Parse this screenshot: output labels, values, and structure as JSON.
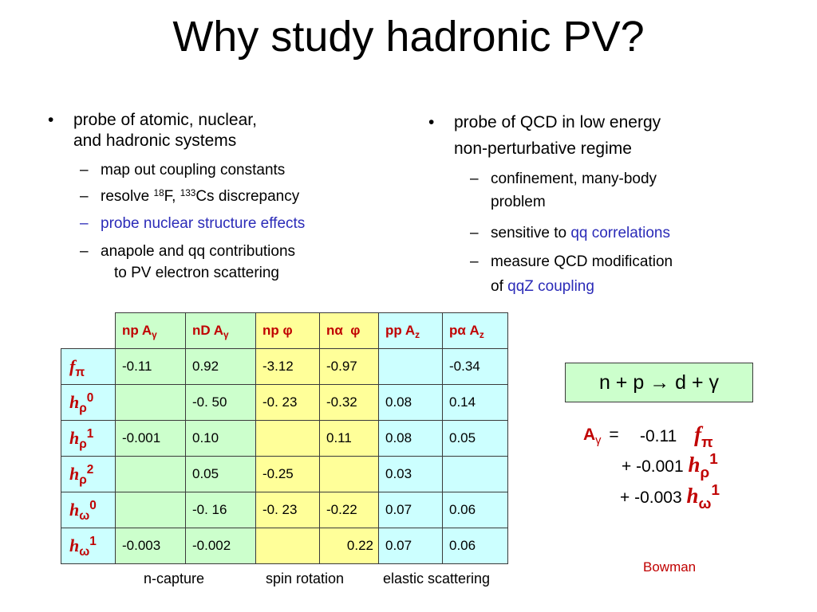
{
  "title": "Why study hadronic PV?",
  "left": {
    "bullet": [
      "probe of atomic, nuclear,",
      "and hadronic systems"
    ],
    "subs": [
      {
        "text": "map out coupling constants"
      },
      {
        "pre": "resolve ",
        "iso1": "18",
        "mid": "F, ",
        "iso2": "133",
        "post": "Cs discrepancy"
      },
      {
        "text": "probe nuclear structure effects"
      },
      {
        "line1": "anapole and qq contributions",
        "line2": "to PV electron scattering"
      }
    ]
  },
  "right": {
    "bullet": [
      "probe of QCD in low energy",
      "non-perturbative regime"
    ],
    "subs": [
      {
        "line1": "confinement, many-body",
        "line2": "problem"
      },
      {
        "pre": "sensitive to ",
        "highlight": "qq correlations"
      },
      {
        "line1": "measure QCD modification",
        "pre2": "of ",
        "highlight": "qqZ coupling"
      }
    ]
  },
  "table": {
    "columns": [
      {
        "base": "np A",
        "sub": "γ"
      },
      {
        "base": "nD A",
        "sub": "γ"
      },
      {
        "base": "np ",
        "sym": "φ"
      },
      {
        "base": "nα  ",
        "sym": "φ"
      },
      {
        "base": "pp A",
        "sub": "z"
      },
      {
        "base": "pα A",
        "sub": "z"
      }
    ],
    "rows": [
      {
        "sym": "f",
        "sub": "π",
        "sup": "",
        "cells": [
          "-0.11",
          "0.92",
          "-3.12",
          "-0.97",
          "",
          "-0.34"
        ]
      },
      {
        "sym": "h",
        "sub": "ρ",
        "sup": "0",
        "cells": [
          "",
          "-0. 50",
          "-0. 23",
          "-0.32",
          "0.08",
          "0.14"
        ]
      },
      {
        "sym": "h",
        "sub": "ρ",
        "sup": "1",
        "cells": [
          "-0.001",
          "0.10",
          "",
          "0.11",
          "0.08",
          "0.05"
        ]
      },
      {
        "sym": "h",
        "sub": "ρ",
        "sup": "2",
        "cells": [
          "",
          "0.05",
          "-0.25",
          "",
          "0.03",
          ""
        ]
      },
      {
        "sym": "h",
        "sub": "ω",
        "sup": "0",
        "cells": [
          "",
          "-0. 16",
          "-0. 23",
          "-0.22",
          "0.07",
          "0.06"
        ]
      },
      {
        "sym": "h",
        "sub": "ω",
        "sup": "1",
        "cells": [
          "-0.003",
          "-0.002",
          "",
          "0.22",
          "0.07",
          "0.06"
        ]
      }
    ],
    "captions": [
      "n-capture",
      "spin rotation",
      "elastic scattering"
    ]
  },
  "reaction": "n + p → d + γ",
  "equation": {
    "lhs": "A",
    "lhs_sub": "γ",
    "equals": "=",
    "terms": [
      {
        "prefix": "",
        "value": "-0.11",
        "sym": "f",
        "sub": "π",
        "sup": ""
      },
      {
        "prefix": "+",
        "value": "-0.001",
        "sym": "h",
        "sub": "ρ",
        "sup": "1"
      },
      {
        "prefix": "+",
        "value": "-0.003",
        "sym": "h",
        "sub": "ω",
        "sup": "1"
      }
    ]
  },
  "credit": "Bowman",
  "colors": {
    "red": "#c00000",
    "blue": "#2b2bb8",
    "green_fill": "#ccffcc",
    "yellow_fill": "#ffff99",
    "cyan_fill": "#ccffff"
  }
}
